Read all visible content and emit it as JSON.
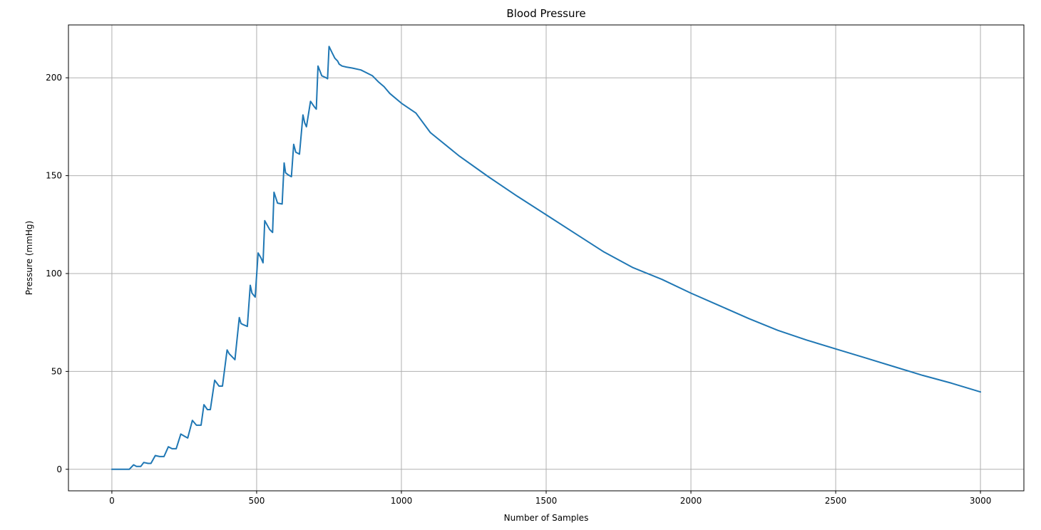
{
  "chart_data": {
    "type": "line",
    "title": "Blood Pressure",
    "xlabel": "Number of Samples",
    "ylabel": "Pressure (mmHg)",
    "xlim": [
      -150,
      3150
    ],
    "ylim": [
      -11,
      227
    ],
    "xticks": [
      0,
      500,
      1000,
      1500,
      2000,
      2500,
      3000
    ],
    "yticks": [
      0,
      50,
      100,
      150,
      200
    ],
    "grid": true,
    "line_color": "#1f77b4",
    "series": [
      {
        "x": [
          0,
          60,
          75,
          85,
          100,
          110,
          125,
          135,
          150,
          165,
          180,
          195,
          208,
          222,
          238,
          255,
          262,
          278,
          292,
          308,
          318,
          330,
          340,
          355,
          370,
          382,
          398,
          405,
          412,
          425,
          440,
          446,
          452,
          468,
          478,
          484,
          495,
          505,
          515,
          522,
          528,
          545,
          555,
          560,
          572,
          588,
          595,
          600,
          608,
          620,
          628,
          635,
          648,
          660,
          666,
          672,
          686,
          700,
          706,
          712,
          725,
          740,
          745,
          750,
          760,
          770,
          780,
          785,
          795,
          810,
          830,
          860,
          900,
          920,
          940,
          960,
          1000,
          1050,
          1100,
          1200,
          1300,
          1400,
          1500,
          1600,
          1700,
          1800,
          1900,
          2000,
          2100,
          2200,
          2300,
          2400,
          2500,
          2600,
          2700,
          2800,
          2900,
          3000
        ],
        "y": [
          0,
          0,
          2.3,
          1.5,
          1.5,
          3.5,
          3,
          3,
          7,
          6.5,
          6.5,
          11.5,
          10.5,
          10.5,
          18,
          16.5,
          16,
          25,
          22.5,
          22.5,
          33,
          30.5,
          30.5,
          45.5,
          42.5,
          42.5,
          61,
          59,
          58,
          56,
          77.5,
          74.5,
          74,
          73,
          94,
          90,
          88,
          110.5,
          108,
          105.5,
          127,
          122.5,
          121,
          141.5,
          136,
          135.5,
          156.5,
          151.5,
          150.5,
          149.5,
          166,
          162,
          161,
          181,
          177,
          175,
          188,
          185,
          184,
          206,
          201,
          200,
          199.5,
          216,
          213,
          210,
          208.5,
          207,
          206,
          205.5,
          205,
          204,
          201,
          198,
          195.5,
          192,
          187,
          182,
          172,
          160,
          149.5,
          139.5,
          130,
          120.5,
          111,
          103,
          97,
          90,
          83.5,
          77,
          71,
          66,
          61.5,
          57,
          52.5,
          48,
          44,
          39.5
        ]
      }
    ]
  }
}
